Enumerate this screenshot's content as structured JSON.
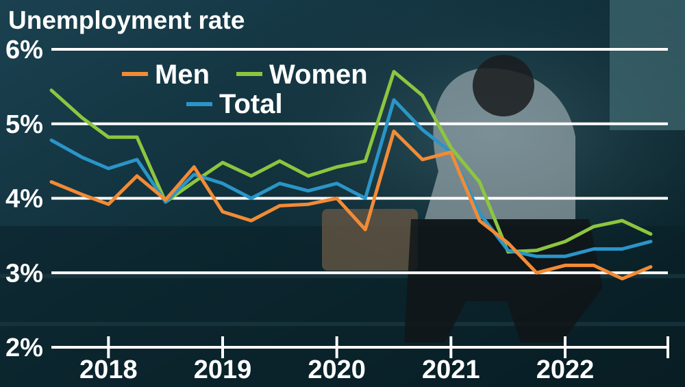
{
  "chart_data": {
    "type": "line",
    "title": "Unemployment rate",
    "xlabel": "",
    "ylabel": "",
    "ylim": [
      2,
      6
    ],
    "xlim": [
      2017.5,
      2022.9
    ],
    "yticks": [
      {
        "value": 6,
        "label": "6%"
      },
      {
        "value": 5,
        "label": "5%"
      },
      {
        "value": 4,
        "label": "4%"
      },
      {
        "value": 3,
        "label": "3%"
      },
      {
        "value": 2,
        "label": "2%"
      }
    ],
    "xticks": [
      {
        "value": 2018,
        "label": "2018"
      },
      {
        "value": 2019,
        "label": "2019"
      },
      {
        "value": 2020,
        "label": "2020"
      },
      {
        "value": 2021,
        "label": "2021"
      },
      {
        "value": 2022,
        "label": "2022"
      }
    ],
    "x": [
      2017.5,
      2017.625,
      2017.75,
      2017.875,
      2018.0,
      2018.125,
      2018.25,
      2018.375,
      2018.5,
      2018.625,
      2018.75,
      2018.875,
      2019.0,
      2019.125,
      2019.25,
      2019.375,
      2019.5,
      2019.625,
      2019.75,
      2019.875,
      2020.0,
      2020.125,
      2020.25,
      2020.375,
      2020.5,
      2020.625,
      2020.75,
      2020.875,
      2021.0,
      2021.125,
      2021.25,
      2021.375,
      2021.5,
      2021.625,
      2021.75,
      2021.875,
      2022.0,
      2022.125,
      2022.25,
      2022.375,
      2022.5,
      2022.625,
      2022.75,
      2022.875
    ],
    "series": [
      {
        "name": "Men",
        "color": "#f28b36",
        "points": [
          [
            2017.5,
            4.22
          ],
          [
            2017.77,
            4.05
          ],
          [
            2018.0,
            3.92
          ],
          [
            2018.25,
            4.3
          ],
          [
            2018.5,
            3.98
          ],
          [
            2018.75,
            4.42
          ],
          [
            2019.0,
            3.82
          ],
          [
            2019.25,
            3.7
          ],
          [
            2019.5,
            3.9
          ],
          [
            2019.75,
            3.92
          ],
          [
            2020.0,
            4.0
          ],
          [
            2020.25,
            3.58
          ],
          [
            2020.5,
            4.9
          ],
          [
            2020.75,
            4.52
          ],
          [
            2021.0,
            4.62
          ],
          [
            2021.25,
            3.7
          ],
          [
            2021.5,
            3.4
          ],
          [
            2021.75,
            3.0
          ],
          [
            2022.0,
            3.1
          ],
          [
            2022.25,
            3.1
          ],
          [
            2022.5,
            2.92
          ],
          [
            2022.75,
            3.08
          ]
        ]
      },
      {
        "name": "Women",
        "color": "#8cc63f",
        "points": [
          [
            2017.5,
            5.45
          ],
          [
            2017.77,
            5.08
          ],
          [
            2018.0,
            4.82
          ],
          [
            2018.25,
            4.82
          ],
          [
            2018.5,
            3.95
          ],
          [
            2018.75,
            4.22
          ],
          [
            2019.0,
            4.48
          ],
          [
            2019.25,
            4.3
          ],
          [
            2019.5,
            4.5
          ],
          [
            2019.75,
            4.3
          ],
          [
            2020.0,
            4.42
          ],
          [
            2020.25,
            4.5
          ],
          [
            2020.5,
            5.7
          ],
          [
            2020.75,
            5.38
          ],
          [
            2021.0,
            4.68
          ],
          [
            2021.25,
            4.22
          ],
          [
            2021.5,
            3.28
          ],
          [
            2021.75,
            3.3
          ],
          [
            2022.0,
            3.42
          ],
          [
            2022.25,
            3.62
          ],
          [
            2022.5,
            3.7
          ],
          [
            2022.75,
            3.52
          ]
        ]
      },
      {
        "name": "Total",
        "color": "#2a95c8",
        "points": [
          [
            2017.5,
            4.78
          ],
          [
            2017.77,
            4.55
          ],
          [
            2018.0,
            4.4
          ],
          [
            2018.25,
            4.52
          ],
          [
            2018.5,
            3.95
          ],
          [
            2018.75,
            4.32
          ],
          [
            2019.0,
            4.2
          ],
          [
            2019.25,
            4.0
          ],
          [
            2019.5,
            4.2
          ],
          [
            2019.75,
            4.1
          ],
          [
            2020.0,
            4.2
          ],
          [
            2020.25,
            4.0
          ],
          [
            2020.5,
            5.32
          ],
          [
            2020.75,
            4.92
          ],
          [
            2021.0,
            4.62
          ],
          [
            2021.25,
            3.8
          ],
          [
            2021.5,
            3.3
          ],
          [
            2021.75,
            3.22
          ],
          [
            2022.0,
            3.22
          ],
          [
            2022.25,
            3.32
          ],
          [
            2022.5,
            3.32
          ],
          [
            2022.75,
            3.42
          ]
        ]
      }
    ],
    "legend": {
      "placement": "top-left"
    },
    "grid": true
  }
}
